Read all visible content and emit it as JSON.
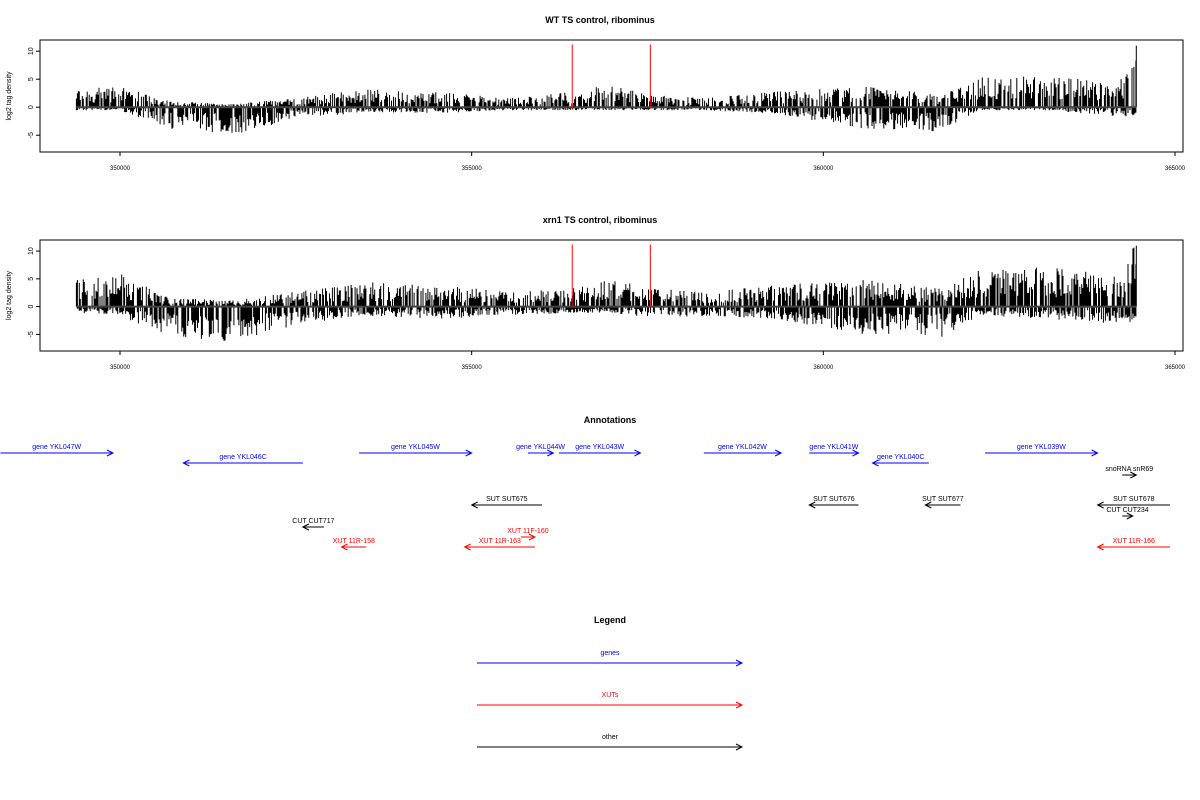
{
  "chart_data": [
    {
      "type": "bar",
      "panel": "wt",
      "title": "WT TS control, ribominus",
      "ylabel": "log2 tag density",
      "xlim": [
        348800,
        365100
      ],
      "ylim": [
        -8,
        12
      ],
      "xticks": [
        350000,
        355000,
        360000,
        365000
      ],
      "yticks": [
        -5,
        0,
        5,
        10
      ],
      "red_lines_x": [
        356430,
        357540
      ],
      "red_line_top": 11.2,
      "profile_note": "dense strand-specific tag density bars; approximate envelope",
      "profile": {
        "x": [
          349380,
          350000,
          350700,
          351600,
          352500,
          353500,
          354500,
          355500,
          356430,
          357000,
          357540,
          358300,
          359300,
          360500,
          361700,
          362200,
          363200,
          364200,
          364450
        ],
        "pos": [
          3,
          3.5,
          1,
          0.5,
          1.5,
          3,
          2.5,
          1.5,
          2.5,
          4,
          2,
          1.5,
          2.5,
          3.5,
          2,
          5,
          5,
          4,
          11
        ],
        "neg": [
          -0.5,
          -0.5,
          -3.5,
          -4.5,
          -2,
          -0.8,
          -1,
          -0.5,
          -0.5,
          -0.5,
          -0.5,
          -0.5,
          -1,
          -3.5,
          -4,
          -0.5,
          -0.5,
          -1.5,
          -1.5
        ]
      }
    },
    {
      "type": "bar",
      "panel": "xrn1",
      "title": "xrn1 TS control, ribominus",
      "ylabel": "log2 tag density",
      "xlim": [
        348800,
        365100
      ],
      "ylim": [
        -8,
        12
      ],
      "xticks": [
        350000,
        355000,
        360000,
        365000
      ],
      "yticks": [
        -5,
        0,
        5,
        10
      ],
      "red_lines_x": [
        356430,
        357540
      ],
      "red_line_top": 11.2,
      "profile_note": "dense strand-specific tag density bars; approximate envelope",
      "profile": {
        "x": [
          349380,
          350000,
          350700,
          351600,
          352500,
          353500,
          354500,
          355500,
          356430,
          357000,
          357540,
          358300,
          359300,
          360500,
          361700,
          362200,
          363200,
          364200,
          364450
        ],
        "pos": [
          4.5,
          5.5,
          1.5,
          1,
          2.5,
          4,
          3.5,
          2.5,
          3,
          4.5,
          3,
          2.5,
          3.5,
          4.5,
          3,
          6.5,
          6.5,
          5,
          11
        ],
        "neg": [
          -1,
          -1.5,
          -5,
          -6,
          -3,
          -1.5,
          -2,
          -1.5,
          -1,
          -1,
          -2,
          -1.5,
          -2,
          -4.5,
          -5,
          -1.5,
          -2,
          -3,
          -3
        ]
      }
    }
  ],
  "annotations": {
    "title": "Annotations",
    "items": [
      {
        "label": "gene YKL047W",
        "start": 348300,
        "end": 349900,
        "strand": "+",
        "row": 0,
        "color": "#0000ff"
      },
      {
        "label": "gene YKL046C",
        "start": 350900,
        "end": 352600,
        "strand": "-",
        "row": 1,
        "color": "#0000ff"
      },
      {
        "label": "gene YKL045W",
        "start": 353400,
        "end": 355000,
        "strand": "+",
        "row": 0,
        "color": "#0000ff"
      },
      {
        "label": "gene YKL044W",
        "start": 355800,
        "end": 356160,
        "strand": "+",
        "row": 0,
        "color": "#0000ff"
      },
      {
        "label": "gene YKL043W",
        "start": 356240,
        "end": 357400,
        "strand": "+",
        "row": 0,
        "color": "#0000ff"
      },
      {
        "label": "gene YKL042W",
        "start": 358300,
        "end": 359400,
        "strand": "+",
        "row": 0,
        "color": "#0000ff"
      },
      {
        "label": "gene YKL041W",
        "start": 359800,
        "end": 360500,
        "strand": "+",
        "row": 0,
        "color": "#0000ff"
      },
      {
        "label": "gene YKL040C",
        "start": 360700,
        "end": 361500,
        "strand": "-",
        "row": 1,
        "color": "#0000ff"
      },
      {
        "label": "gene YKL039W",
        "start": 362300,
        "end": 363900,
        "strand": "+",
        "row": 0,
        "color": "#0000ff"
      },
      {
        "label": "snoRNA snR69",
        "start": 364250,
        "end": 364450,
        "strand": "+",
        "row": 2,
        "color": "#000000"
      },
      {
        "label": "SUT SUT675",
        "start": 355000,
        "end": 356000,
        "strand": "-",
        "row": 3,
        "color": "#000000"
      },
      {
        "label": "SUT SUT676",
        "start": 359800,
        "end": 360500,
        "strand": "-",
        "row": 3,
        "color": "#000000"
      },
      {
        "label": "SUT SUT677",
        "start": 361450,
        "end": 361950,
        "strand": "-",
        "row": 3,
        "color": "#000000"
      },
      {
        "label": "SUT SUT678",
        "start": 363900,
        "end": 364950,
        "strand": "-",
        "row": 3,
        "color": "#000000"
      },
      {
        "label": "CUT CUT234",
        "start": 364250,
        "end": 364400,
        "strand": "+",
        "row": 4,
        "color": "#000000"
      },
      {
        "label": "CUT CUT717",
        "start": 352600,
        "end": 352900,
        "strand": "-",
        "row": 5,
        "color": "#000000"
      },
      {
        "label": "XUT 11F-160",
        "start": 355700,
        "end": 355900,
        "strand": "+",
        "row": 6,
        "color": "#ff0000"
      },
      {
        "label": "XUT 11R-158",
        "start": 353150,
        "end": 353500,
        "strand": "-",
        "row": 7,
        "color": "#ff0000"
      },
      {
        "label": "XUT 11R-163",
        "start": 354900,
        "end": 355900,
        "strand": "-",
        "row": 7,
        "color": "#ff0000"
      },
      {
        "label": "XUT 11R-166",
        "start": 363900,
        "end": 364950,
        "strand": "-",
        "row": 7,
        "color": "#ff0000"
      }
    ]
  },
  "legend": {
    "title": "Legend",
    "items": [
      {
        "label": "genes",
        "color": "#0000ff"
      },
      {
        "label": "XUTs",
        "color": "#ff0000"
      },
      {
        "label": "other",
        "color": "#000000"
      }
    ]
  }
}
